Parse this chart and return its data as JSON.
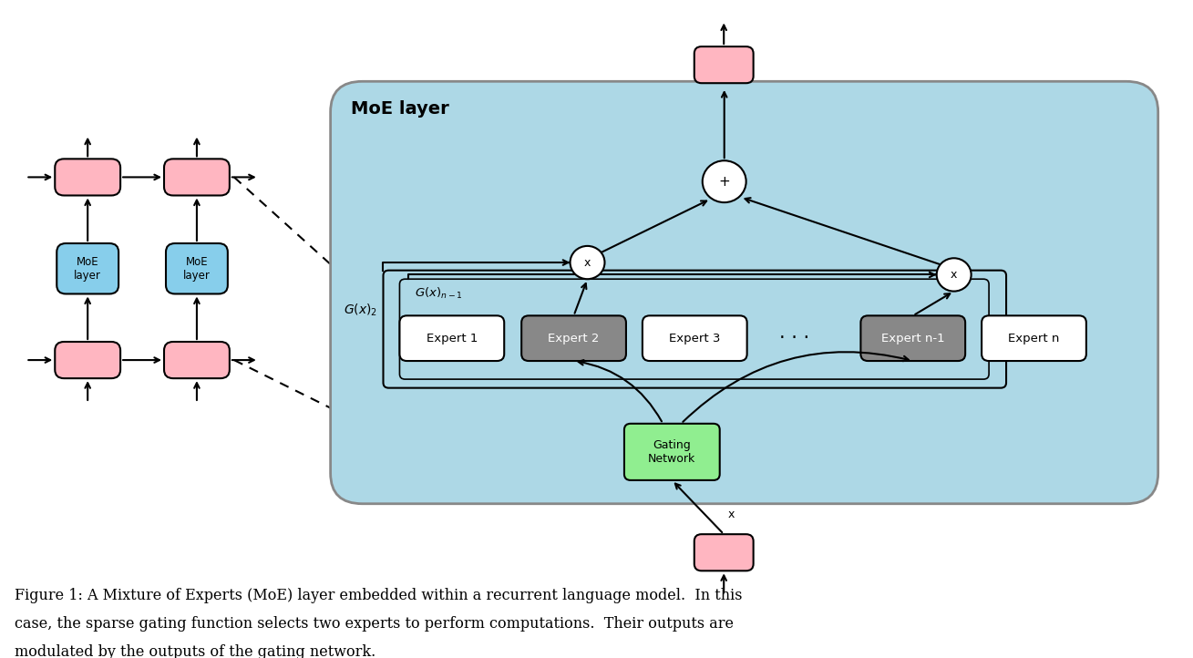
{
  "bg_color": "#ffffff",
  "moe_bg_color": "#add8e6",
  "pink_color": "#ffb6c1",
  "blue_box_color": "#87ceeb",
  "expert_light_color": "#ffffff",
  "expert_dark_color": "#888888",
  "gating_color": "#90ee90",
  "circle_color": "#ffffff",
  "caption_line1": "Figure 1: A Mixture of Experts (MoE) layer embedded within a recurrent language model.  In this",
  "caption_line2": "case, the sparse gating function selects two experts to perform computations.  Their outputs are",
  "caption_line3": "modulated by the outputs of the gating network.",
  "moe_label": "MoE layer",
  "gating_label": "Gating\nNetwork",
  "expert_labels": [
    "Expert 1",
    "Expert 2",
    "Expert 3",
    "Expert n-1",
    "Expert n"
  ],
  "dots_label": "· · ·"
}
